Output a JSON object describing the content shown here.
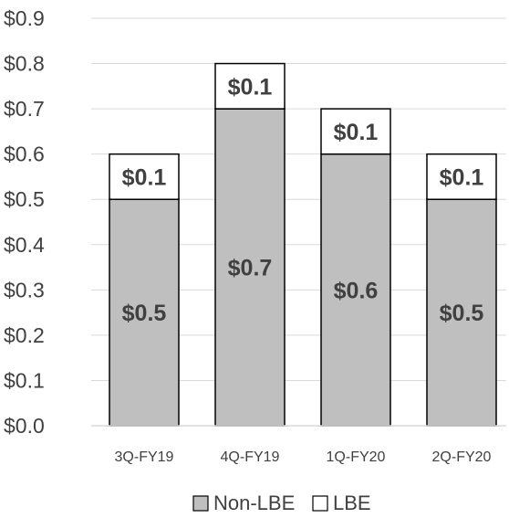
{
  "chart_data": {
    "type": "bar",
    "stacked": true,
    "title": "",
    "xlabel": "",
    "ylabel": "",
    "categories": [
      "3Q-FY19",
      "4Q-FY19",
      "1Q-FY20",
      "2Q-FY20"
    ],
    "series": [
      {
        "name": "Non-LBE",
        "values": [
          0.5,
          0.7,
          0.6,
          0.5
        ],
        "labels": [
          "$0.5",
          "$0.7",
          "$0.6",
          "$0.5"
        ],
        "color": "#bfbfbf"
      },
      {
        "name": "LBE",
        "values": [
          0.1,
          0.1,
          0.1,
          0.1
        ],
        "labels": [
          "$0.1",
          "$0.1",
          "$0.1",
          "$0.1"
        ],
        "color": "#ffffff"
      }
    ],
    "ylim": [
      0,
      0.9
    ],
    "yticks": [
      0,
      0.1,
      0.2,
      0.3,
      0.4,
      0.5,
      0.6,
      0.7,
      0.8,
      0.9
    ],
    "ytick_labels": [
      "$0.0",
      "$0.1",
      "$0.2",
      "$0.3",
      "$0.4",
      "$0.5",
      "$0.6",
      "$0.7",
      "$0.8",
      "$0.9"
    ],
    "grid": true,
    "legend": "bottom",
    "bar_border_color": "#000000",
    "grid_color": "#d9d9d9",
    "text_color": "#404040"
  }
}
